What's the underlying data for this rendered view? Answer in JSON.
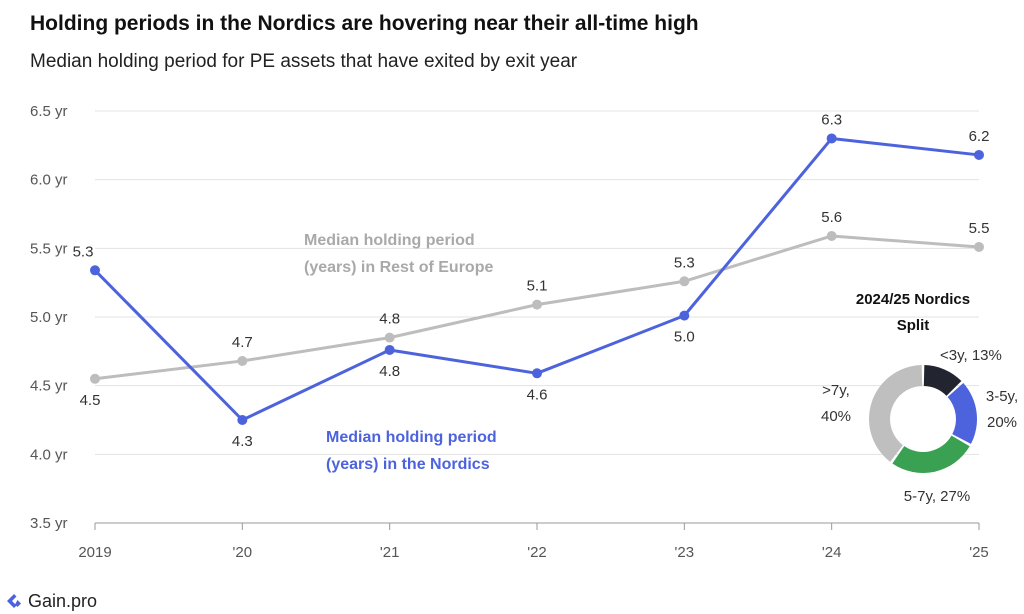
{
  "header": {
    "title": "Holding periods in the Nordics are hovering near their all-time high",
    "subtitle": "Median holding period for PE assets that have exited by exit year"
  },
  "brand": {
    "name": "Gain.pro"
  },
  "colors": {
    "nordics": "#4d63dd",
    "europe": "#bdbdbd",
    "grid": "#e3e3e3",
    "axis": "#9a9a9a"
  },
  "chart_data": [
    {
      "type": "line",
      "categories": [
        "2019",
        "'20",
        "'21",
        "'22",
        "'23",
        "'24",
        "'25"
      ],
      "x": [
        2019,
        2020,
        2021,
        2022,
        2023,
        2024,
        2025
      ],
      "ylim": [
        3.5,
        6.5
      ],
      "yticks": [
        3.5,
        4.0,
        4.5,
        5.0,
        5.5,
        6.0,
        6.5
      ],
      "ytick_labels": [
        "3.5 yr",
        "4.0 yr",
        "4.5 yr",
        "5.0 yr",
        "5.5 yr",
        "6.0 yr",
        "6.5 yr"
      ],
      "grid": true,
      "series": [
        {
          "name": "Median holding period (years) in the Nordics",
          "name_lines": [
            "Median holding period",
            "(years) in the Nordics"
          ],
          "values": [
            5.34,
            4.25,
            4.76,
            4.59,
            5.01,
            6.3,
            6.18
          ],
          "labels": [
            "5.3",
            "4.3",
            "4.8",
            "4.6",
            "5.0",
            "6.3",
            "6.2"
          ],
          "label_pos": [
            "above",
            "below",
            "below",
            "below",
            "below",
            "above",
            "above"
          ]
        },
        {
          "name": "Median holding period (years) in Rest of Europe",
          "name_lines": [
            "Median holding period",
            "(years) in Rest of Europe"
          ],
          "values": [
            4.55,
            4.68,
            4.85,
            5.09,
            5.26,
            5.59,
            5.51
          ],
          "labels": [
            "4.5",
            "4.7",
            "4.8",
            "5.1",
            "5.3",
            "5.6",
            "5.5"
          ],
          "label_pos": [
            "below",
            "above",
            "above",
            "above",
            "above",
            "above",
            "above"
          ]
        }
      ]
    },
    {
      "type": "pie",
      "donut": true,
      "title_lines": [
        "2024/25 Nordics",
        "Split"
      ],
      "slices": [
        {
          "name": "<3y",
          "value": 13,
          "label": "<3y, 13%",
          "color": "#22252f"
        },
        {
          "name": "3-5y",
          "value": 20,
          "label_lines": [
            "3-5y,",
            "20%"
          ],
          "color": "#4d63dd"
        },
        {
          "name": "5-7y",
          "value": 27,
          "label": "5-7y, 27%",
          "color": "#3aa052"
        },
        {
          "name": ">7y",
          "value": 40,
          "label_lines": [
            ">7y,",
            "40%"
          ],
          "color": "#bfbfbf"
        }
      ]
    }
  ]
}
